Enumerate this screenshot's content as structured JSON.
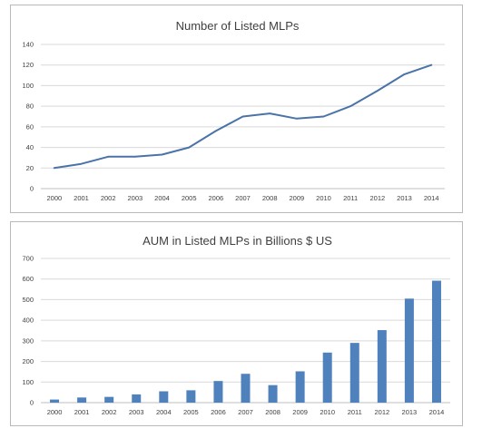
{
  "chart_data": [
    {
      "type": "line",
      "title": "Number of Listed MLPs",
      "xlabel": "",
      "ylabel": "",
      "categories": [
        "2000",
        "2001",
        "2002",
        "2003",
        "2004",
        "2005",
        "2006",
        "2007",
        "2008",
        "2009",
        "2010",
        "2011",
        "2012",
        "2013",
        "2014"
      ],
      "values": [
        20,
        24,
        31,
        31,
        33,
        40,
        56,
        70,
        73,
        68,
        70,
        80,
        95,
        111,
        120
      ],
      "ylim": [
        0,
        140
      ],
      "yticks": [
        "0",
        "20",
        "40",
        "60",
        "80",
        "100",
        "120",
        "140"
      ],
      "grid": true,
      "legend": "none",
      "color": "#4a73a8"
    },
    {
      "type": "bar",
      "title": "AUM in Listed MLPs in Billions $ US",
      "xlabel": "",
      "ylabel": "",
      "categories": [
        "2000",
        "2001",
        "2002",
        "2003",
        "2004",
        "2005",
        "2006",
        "2007",
        "2008",
        "2009",
        "2010",
        "2011",
        "2012",
        "2013",
        "2014"
      ],
      "values": [
        15,
        25,
        28,
        40,
        55,
        60,
        105,
        140,
        85,
        152,
        243,
        290,
        352,
        505,
        592
      ],
      "ylim": [
        0,
        700
      ],
      "yticks": [
        "0",
        "100",
        "200",
        "300",
        "400",
        "500",
        "600",
        "700"
      ],
      "grid": true,
      "legend": "none",
      "color": "#4f81bd"
    }
  ]
}
